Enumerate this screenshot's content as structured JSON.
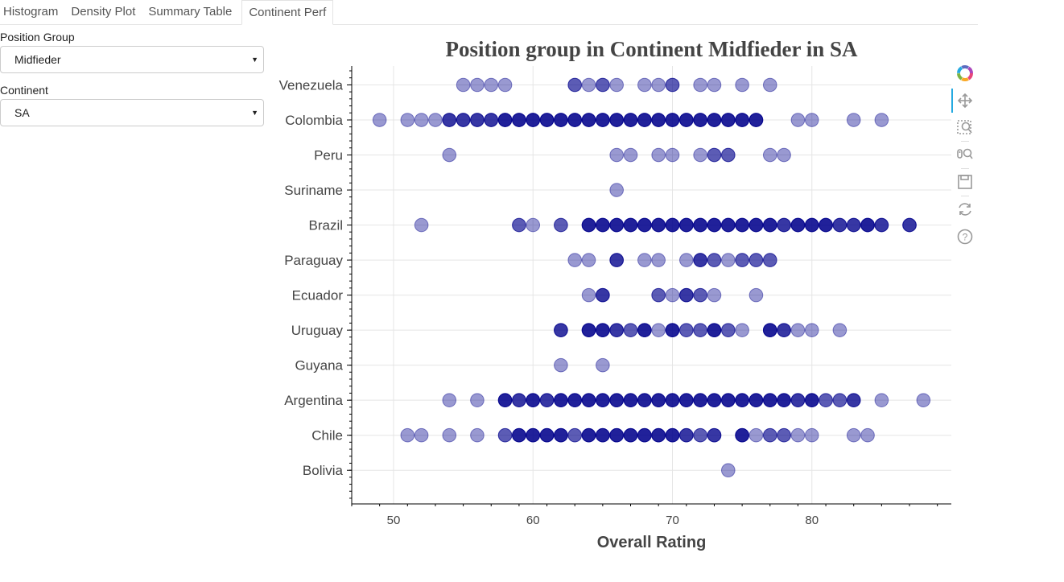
{
  "tabs": [
    {
      "label": "Histogram",
      "active": false
    },
    {
      "label": "Density Plot",
      "active": false
    },
    {
      "label": "Summary Table",
      "active": false
    },
    {
      "label": "Continent Perf",
      "active": true
    }
  ],
  "controls": {
    "position_group": {
      "label": "Position Group",
      "value": "Midfieder"
    },
    "continent": {
      "label": "Continent",
      "value": "SA"
    }
  },
  "toolbar": {
    "items": [
      "bokeh-logo-icon",
      "pan-icon",
      "box-zoom-icon",
      "wheel-zoom-icon",
      "save-icon",
      "reset-icon",
      "help-icon"
    ]
  },
  "colors": {
    "marker": "#00008b",
    "grid": "#e5e5e5",
    "toolbar_active": "#26aae1"
  },
  "chart_data": {
    "type": "scatter",
    "title": "Position group in Continent  Midfieder in SA",
    "xlabel": "Overall Rating",
    "ylabel": "",
    "xlim": [
      47,
      90
    ],
    "x_ticks": [
      50,
      60,
      70,
      80
    ],
    "grid": true,
    "marker_color": "#00008b",
    "categories": [
      "Venezuela",
      "Colombia",
      "Peru",
      "Suriname",
      "Brazil",
      "Paraguay",
      "Ecuador",
      "Uruguay",
      "Guyana",
      "Argentina",
      "Chile",
      "Bolivia"
    ],
    "series": [
      {
        "category": "Venezuela",
        "points": [
          [
            55,
            1
          ],
          [
            56,
            1
          ],
          [
            57,
            1
          ],
          [
            58,
            1
          ],
          [
            63,
            2
          ],
          [
            64,
            1
          ],
          [
            65,
            2
          ],
          [
            66,
            1
          ],
          [
            68,
            1
          ],
          [
            69,
            1
          ],
          [
            70,
            2
          ],
          [
            72,
            1
          ],
          [
            73,
            1
          ],
          [
            75,
            1
          ],
          [
            77,
            1
          ]
        ]
      },
      {
        "category": "Colombia",
        "points": [
          [
            49,
            1
          ],
          [
            51,
            1
          ],
          [
            52,
            1
          ],
          [
            53,
            1
          ],
          [
            54,
            3
          ],
          [
            55,
            3
          ],
          [
            56,
            3
          ],
          [
            57,
            3
          ],
          [
            58,
            4
          ],
          [
            59,
            4
          ],
          [
            60,
            4
          ],
          [
            61,
            4
          ],
          [
            62,
            4
          ],
          [
            63,
            4
          ],
          [
            64,
            4
          ],
          [
            65,
            4
          ],
          [
            66,
            4
          ],
          [
            67,
            4
          ],
          [
            68,
            4
          ],
          [
            69,
            4
          ],
          [
            70,
            4
          ],
          [
            71,
            4
          ],
          [
            72,
            4
          ],
          [
            73,
            4
          ],
          [
            74,
            4
          ],
          [
            75,
            4
          ],
          [
            76,
            4
          ],
          [
            79,
            1
          ],
          [
            80,
            1
          ],
          [
            83,
            1
          ],
          [
            85,
            1
          ]
        ]
      },
      {
        "category": "Peru",
        "points": [
          [
            54,
            1
          ],
          [
            66,
            1
          ],
          [
            67,
            1
          ],
          [
            69,
            1
          ],
          [
            70,
            1
          ],
          [
            72,
            1
          ],
          [
            73,
            2
          ],
          [
            74,
            2
          ],
          [
            77,
            1
          ],
          [
            78,
            1
          ]
        ]
      },
      {
        "category": "Suriname",
        "points": [
          [
            66,
            1
          ]
        ]
      },
      {
        "category": "Brazil",
        "points": [
          [
            52,
            1
          ],
          [
            59,
            2
          ],
          [
            60,
            1
          ],
          [
            62,
            2
          ],
          [
            64,
            4
          ],
          [
            65,
            4
          ],
          [
            66,
            4
          ],
          [
            67,
            4
          ],
          [
            68,
            4
          ],
          [
            69,
            4
          ],
          [
            70,
            4
          ],
          [
            71,
            4
          ],
          [
            72,
            4
          ],
          [
            73,
            4
          ],
          [
            74,
            4
          ],
          [
            75,
            4
          ],
          [
            76,
            4
          ],
          [
            77,
            4
          ],
          [
            78,
            3
          ],
          [
            79,
            4
          ],
          [
            80,
            4
          ],
          [
            81,
            4
          ],
          [
            82,
            3
          ],
          [
            83,
            3
          ],
          [
            84,
            4
          ],
          [
            85,
            3
          ],
          [
            87,
            3
          ]
        ]
      },
      {
        "category": "Paraguay",
        "points": [
          [
            63,
            1
          ],
          [
            64,
            1
          ],
          [
            66,
            3
          ],
          [
            68,
            1
          ],
          [
            69,
            1
          ],
          [
            71,
            1
          ],
          [
            72,
            3
          ],
          [
            73,
            2
          ],
          [
            74,
            1
          ],
          [
            75,
            2
          ],
          [
            76,
            2
          ],
          [
            77,
            2
          ]
        ]
      },
      {
        "category": "Ecuador",
        "points": [
          [
            64,
            1
          ],
          [
            65,
            3
          ],
          [
            69,
            2
          ],
          [
            70,
            1
          ],
          [
            71,
            3
          ],
          [
            72,
            2
          ],
          [
            73,
            1
          ],
          [
            76,
            1
          ]
        ]
      },
      {
        "category": "Uruguay",
        "points": [
          [
            62,
            3
          ],
          [
            64,
            4
          ],
          [
            65,
            4
          ],
          [
            66,
            3
          ],
          [
            67,
            2
          ],
          [
            68,
            4
          ],
          [
            69,
            1
          ],
          [
            70,
            4
          ],
          [
            71,
            2
          ],
          [
            72,
            2
          ],
          [
            73,
            4
          ],
          [
            74,
            2
          ],
          [
            75,
            1
          ],
          [
            77,
            4
          ],
          [
            78,
            3
          ],
          [
            79,
            1
          ],
          [
            80,
            1
          ],
          [
            82,
            1
          ]
        ]
      },
      {
        "category": "Guyana",
        "points": [
          [
            62,
            1
          ],
          [
            65,
            1
          ]
        ]
      },
      {
        "category": "Argentina",
        "points": [
          [
            54,
            1
          ],
          [
            56,
            1
          ],
          [
            58,
            4
          ],
          [
            59,
            3
          ],
          [
            60,
            4
          ],
          [
            61,
            3
          ],
          [
            62,
            4
          ],
          [
            63,
            4
          ],
          [
            64,
            4
          ],
          [
            65,
            4
          ],
          [
            66,
            4
          ],
          [
            67,
            4
          ],
          [
            68,
            4
          ],
          [
            69,
            4
          ],
          [
            70,
            4
          ],
          [
            71,
            4
          ],
          [
            72,
            4
          ],
          [
            73,
            4
          ],
          [
            74,
            4
          ],
          [
            75,
            4
          ],
          [
            76,
            4
          ],
          [
            77,
            4
          ],
          [
            78,
            4
          ],
          [
            79,
            3
          ],
          [
            80,
            4
          ],
          [
            81,
            2
          ],
          [
            82,
            2
          ],
          [
            83,
            3
          ],
          [
            85,
            1
          ],
          [
            88,
            1
          ]
        ]
      },
      {
        "category": "Chile",
        "points": [
          [
            51,
            1
          ],
          [
            52,
            1
          ],
          [
            54,
            1
          ],
          [
            56,
            1
          ],
          [
            58,
            2
          ],
          [
            59,
            4
          ],
          [
            60,
            4
          ],
          [
            61,
            4
          ],
          [
            62,
            4
          ],
          [
            63,
            2
          ],
          [
            64,
            4
          ],
          [
            65,
            4
          ],
          [
            66,
            4
          ],
          [
            67,
            4
          ],
          [
            68,
            4
          ],
          [
            69,
            4
          ],
          [
            70,
            4
          ],
          [
            71,
            3
          ],
          [
            72,
            2
          ],
          [
            73,
            3
          ],
          [
            75,
            4
          ],
          [
            76,
            1
          ],
          [
            77,
            2
          ],
          [
            78,
            2
          ],
          [
            79,
            1
          ],
          [
            80,
            1
          ],
          [
            83,
            1
          ],
          [
            84,
            1
          ]
        ]
      },
      {
        "category": "Bolivia",
        "points": [
          [
            74,
            1
          ]
        ]
      }
    ]
  }
}
